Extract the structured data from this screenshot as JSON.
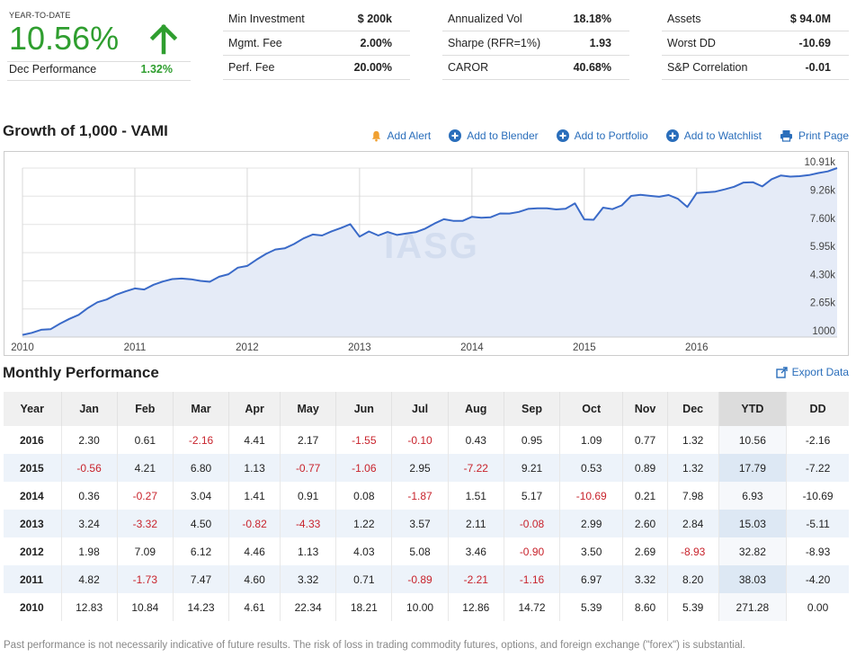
{
  "ytd": {
    "label": "YEAR-TO-DATE",
    "value": "10.56%",
    "dec_label": "Dec Performance",
    "dec_value": "1.32%",
    "color": "#2f9e2f"
  },
  "stats_col1": [
    {
      "key": "Min Investment",
      "value": "$ 200k"
    },
    {
      "key": "Mgmt. Fee",
      "value": "2.00%"
    },
    {
      "key": "Perf. Fee",
      "value": "20.00%"
    }
  ],
  "stats_col2": [
    {
      "key": "Annualized Vol",
      "value": "18.18%"
    },
    {
      "key": "Sharpe (RFR=1%)",
      "value": "1.93"
    },
    {
      "key": "CAROR",
      "value": "40.68%"
    }
  ],
  "stats_col3": [
    {
      "key": "Assets",
      "value": "$ 94.0M"
    },
    {
      "key": "Worst DD",
      "value": "-10.69"
    },
    {
      "key": "S&P Correlation",
      "value": "-0.01"
    }
  ],
  "chart_section": {
    "title": "Growth of 1,000 - VAMI",
    "actions": [
      {
        "label": "Add Alert",
        "icon": "bell-icon"
      },
      {
        "label": "Add to Blender",
        "icon": "plus-circle-icon"
      },
      {
        "label": "Add to Portfolio",
        "icon": "plus-circle-icon"
      },
      {
        "label": "Add to Watchlist",
        "icon": "plus-circle-icon"
      },
      {
        "label": "Print Page",
        "icon": "printer-icon"
      }
    ],
    "watermark": "IASG",
    "accent_color": "#2a6ebb"
  },
  "chart_data": {
    "type": "area",
    "title": "",
    "xlabel": "",
    "ylabel": "",
    "x_tick_labels": [
      "2010",
      "2011",
      "2012",
      "2013",
      "2014",
      "2015",
      "2016"
    ],
    "y_tick_labels": [
      "1000",
      "2.65k",
      "4.30k",
      "5.95k",
      "7.60k",
      "9.26k",
      "10.91k"
    ],
    "y_ticks": [
      1000,
      2650,
      4300,
      5950,
      7600,
      9260,
      10910
    ],
    "ylim": [
      1000,
      10910
    ],
    "x_start": "2010-01",
    "series": [
      {
        "values": [
          1128,
          1250,
          1428,
          1460,
          1786,
          2066,
          2301,
          2710,
          3040,
          3204,
          3481,
          3677,
          3854,
          3787,
          4070,
          4257,
          4398,
          4429,
          4390,
          4292,
          4242,
          4538,
          4685,
          5069,
          5169,
          5536,
          5874,
          6136,
          6205,
          6455,
          6783,
          7017,
          6954,
          7198,
          7392,
          7620,
          6889,
          7192,
          6959,
          7164,
          6988,
          7073,
          7149,
          7358,
          7656,
          7911,
          7817,
          7810,
          8055,
          7998,
          8029,
          8249,
          8242,
          8336,
          8517,
          8556,
          8553,
          8485,
          8528,
          8839,
          7902,
          7880,
          8592,
          8500,
          8722,
          9276,
          9341,
          9283,
          9228,
          9330,
          9105,
          8625,
          9447,
          9488,
          9531,
          9659,
          9814,
          10059,
          10084,
          9834,
          10258,
          10477,
          10407,
          10437,
          10501,
          10621,
          10716,
          10910
        ]
      }
    ],
    "color": "#3a6ac8",
    "fill": "#e5ebf7",
    "grid": true
  },
  "monthly": {
    "title": "Monthly Performance",
    "export_label": "Export Data",
    "headers": [
      "Year",
      "Jan",
      "Feb",
      "Mar",
      "Apr",
      "May",
      "Jun",
      "Jul",
      "Aug",
      "Sep",
      "Oct",
      "Nov",
      "Dec",
      "YTD",
      "DD"
    ],
    "rows": [
      [
        "2016",
        "2.30",
        "0.61",
        "-2.16",
        "4.41",
        "2.17",
        "-1.55",
        "-0.10",
        "0.43",
        "0.95",
        "1.09",
        "0.77",
        "1.32",
        "10.56",
        "-2.16"
      ],
      [
        "2015",
        "-0.56",
        "4.21",
        "6.80",
        "1.13",
        "-0.77",
        "-1.06",
        "2.95",
        "-7.22",
        "9.21",
        "0.53",
        "0.89",
        "1.32",
        "17.79",
        "-7.22"
      ],
      [
        "2014",
        "0.36",
        "-0.27",
        "3.04",
        "1.41",
        "0.91",
        "0.08",
        "-1.87",
        "1.51",
        "5.17",
        "-10.69",
        "0.21",
        "7.98",
        "6.93",
        "-10.69"
      ],
      [
        "2013",
        "3.24",
        "-3.32",
        "4.50",
        "-0.82",
        "-4.33",
        "1.22",
        "3.57",
        "2.11",
        "-0.08",
        "2.99",
        "2.60",
        "2.84",
        "15.03",
        "-5.11"
      ],
      [
        "2012",
        "1.98",
        "7.09",
        "6.12",
        "4.46",
        "1.13",
        "4.03",
        "5.08",
        "3.46",
        "-0.90",
        "3.50",
        "2.69",
        "-8.93",
        "32.82",
        "-8.93"
      ],
      [
        "2011",
        "4.82",
        "-1.73",
        "7.47",
        "4.60",
        "3.32",
        "0.71",
        "-0.89",
        "-2.21",
        "-1.16",
        "6.97",
        "3.32",
        "8.20",
        "38.03",
        "-4.20"
      ],
      [
        "2010",
        "12.83",
        "10.84",
        "14.23",
        "4.61",
        "22.34",
        "18.21",
        "10.00",
        "12.86",
        "14.72",
        "5.39",
        "8.60",
        "5.39",
        "271.28",
        "0.00"
      ]
    ],
    "negative_color": "#c8232c",
    "alt_row_color": "#edf3fa"
  },
  "disclaimer": "Past performance is not necessarily indicative of future results. The risk of loss in trading commodity futures, options, and foreign exchange (\"forex\") is substantial."
}
